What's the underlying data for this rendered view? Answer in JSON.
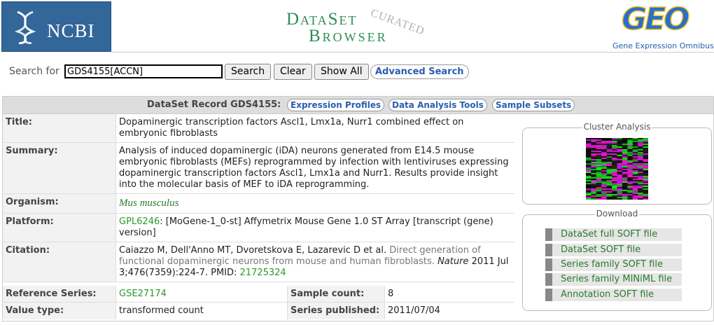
{
  "header": {
    "ncbi_text": "NCBI",
    "dataset_line1": "DataSet",
    "dataset_line2": "Browser",
    "curated": "CURATED",
    "geo_text": "GEO",
    "geo_subtitle": "Gene Expression Omnibus"
  },
  "search": {
    "label": "Search for",
    "value": "GDS4155[ACCN]",
    "search_button": "Search",
    "clear_button": "Clear",
    "show_all_button": "Show All",
    "advanced_button": "Advanced Search"
  },
  "record": {
    "header": "DataSet Record GDS4155:",
    "tabs": [
      "Expression Profiles",
      "Data Analysis Tools",
      "Sample Subsets"
    ],
    "title_label": "Title:",
    "title_value": "Dopaminergic transcription factors Ascl1, Lmx1a, Nurr1 combined effect on embryonic fibroblasts",
    "summary_label": "Summary:",
    "summary_value": "Analysis of induced dopaminergic (iDA) neurons generated from E14.5 mouse embryonic fibroblasts (MEFs) reprogrammed by infection with lentiviruses expressing dopaminergic transcription factors Ascl1, Lmx1a and Nurr1. Results provide insight into the molecular basis of MEF to iDA reprogramming.",
    "organism_label": "Organism:",
    "organism_value": "Mus musculus",
    "platform_label": "Platform:",
    "platform_link": "GPL6246",
    "platform_text": ": [MoGene-1_0-st] Affymetrix Mouse Gene 1.0 ST Array [transcript (gene) version]",
    "citation_label": "Citation:",
    "citation_authors": "Caiazzo M, Dell'Anno MT, Dvoretskova E, Lazarevic D et al.",
    "citation_title": "Direct generation of functional dopaminergic neurons from mouse and human fibroblasts.",
    "citation_journal": "Nature",
    "citation_details": "2011 Jul 3;476(7359):224-7. PMID:",
    "citation_pmid": "21725324",
    "refseries_label": "Reference Series:",
    "refseries_value": "GSE27174",
    "samplecount_label": "Sample count:",
    "samplecount_value": "8",
    "valuetype_label": "Value type:",
    "valuetype_value": "transformed count",
    "published_label": "Series published:",
    "published_value": "2011/07/04"
  },
  "cluster": {
    "title": "Cluster Analysis"
  },
  "download": {
    "title": "Download",
    "items": [
      "DataSet full SOFT file",
      "DataSet SOFT file",
      "Series family SOFT file",
      "Series family MINiML file",
      "Annotation SOFT file"
    ]
  },
  "colors": {
    "ncbi_blue": "#336699",
    "link_blue": "#2a5db0",
    "link_green": "#2a9a2a",
    "header_gray": "#dddddd"
  }
}
